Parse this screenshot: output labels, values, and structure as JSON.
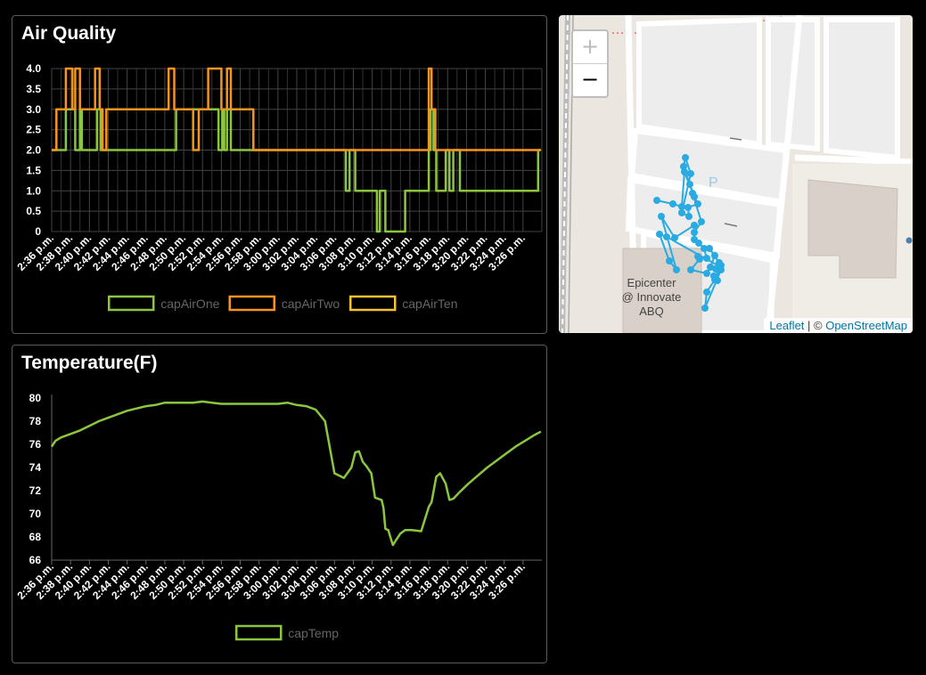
{
  "air_card": {
    "title": "Air Quality"
  },
  "temp_card": {
    "title": "Temperature(F)"
  },
  "map": {
    "zoom_in": "+",
    "zoom_out": "−",
    "place_label": [
      "Epicenter",
      "@ Innovate",
      "ABQ"
    ],
    "attribution_leaflet": "Leaflet",
    "attribution_sep": " | © ",
    "attribution_osm": "OpenStreetMap"
  },
  "colors": {
    "capAirOne": "#8cc63f",
    "capAirTwo": "#f7941d",
    "capAirTen": "#f4c430",
    "capTemp": "#8cc63f",
    "track": "#29abe2"
  },
  "chart_data": [
    {
      "type": "line",
      "title": "Air Quality",
      "x_ticks": [
        "2:36 p.m.",
        "2:38 p.m.",
        "2:40 p.m.",
        "2:42 p.m.",
        "2:44 p.m.",
        "2:46 p.m.",
        "2:48 p.m.",
        "2:50 p.m.",
        "2:52 p.m.",
        "2:54 p.m.",
        "2:56 p.m.",
        "2:58 p.m.",
        "3:00 p.m.",
        "3:02 p.m.",
        "3:04 p.m.",
        "3:06 p.m.",
        "3:08 p.m.",
        "3:10 p.m.",
        "3:12 p.m.",
        "3:14 p.m.",
        "3:16 p.m.",
        "3:18 p.m.",
        "3:20 p.m.",
        "3:22 p.m.",
        "3:24 p.m.",
        "3:26 p.m."
      ],
      "y_ticks": [
        "4.0",
        "3.5",
        "3.0",
        "2.5",
        "2.0",
        "1.5",
        "1.0",
        "0.5",
        "0"
      ],
      "ylim": [
        0,
        4
      ],
      "xlim_minutes": [
        0,
        52
      ],
      "grid": true,
      "legend_position": "bottom",
      "series": [
        {
          "name": "capAirOne",
          "step": true,
          "x": [
            0,
            1.5,
            1.5,
            2.5,
            2.5,
            3.0,
            3.0,
            3.2,
            3.2,
            4.8,
            4.8,
            5.2,
            5.2,
            5.4,
            5.4,
            13.2,
            13.2,
            17.7,
            17.7,
            18.1,
            18.1,
            18.3,
            18.3,
            18.6,
            18.6,
            19.0,
            19.0,
            31.2,
            31.2,
            31.6,
            31.6,
            32.2,
            32.2,
            32.8,
            32.8,
            34.5,
            34.5,
            34.8,
            34.8,
            35.4,
            35.4,
            35.8,
            35.8,
            37.5,
            37.5,
            40.0,
            40.0,
            40.2,
            40.2,
            40.5,
            40.5,
            40.8,
            40.8,
            41.8,
            41.8,
            42.2,
            42.2,
            42.6,
            42.6,
            43.3,
            43.3,
            51.6,
            51.6,
            51.9
          ],
          "values": [
            2,
            2,
            3,
            3,
            2,
            2,
            3,
            3,
            2,
            2,
            3,
            3,
            2,
            2,
            2,
            2,
            3,
            3,
            2,
            2,
            3,
            3,
            2,
            2,
            3,
            3,
            2,
            2,
            1,
            1,
            2,
            2,
            1,
            1,
            1,
            1,
            0,
            0,
            1,
            1,
            0,
            0,
            0,
            0,
            1,
            1,
            2,
            2,
            3,
            3,
            2,
            2,
            1,
            1,
            2,
            2,
            1,
            1,
            2,
            2,
            1,
            1,
            2,
            2
          ]
        },
        {
          "name": "capAirTwo",
          "step": true,
          "x": [
            0,
            0.5,
            0.5,
            1.5,
            1.5,
            2.2,
            2.2,
            2.5,
            2.5,
            3.0,
            3.0,
            4.6,
            4.6,
            5.1,
            5.1,
            5.4,
            5.4,
            5.8,
            5.8,
            12.4,
            12.4,
            13.0,
            13.0,
            15.0,
            15.0,
            15.6,
            15.6,
            16.6,
            16.6,
            18.0,
            18.0,
            18.6,
            18.6,
            19.0,
            19.0,
            21.4,
            21.4,
            40.0,
            40.0,
            40.3,
            40.3,
            40.7,
            40.7,
            51.9
          ],
          "values": [
            2,
            2,
            3,
            3,
            4,
            4,
            3,
            3,
            4,
            4,
            3,
            3,
            4,
            4,
            3,
            3,
            2,
            2,
            3,
            3,
            4,
            4,
            3,
            3,
            2,
            2,
            3,
            3,
            4,
            4,
            3,
            3,
            4,
            4,
            3,
            3,
            2,
            2,
            4,
            4,
            3,
            3,
            2,
            2
          ]
        },
        {
          "name": "capAirTen",
          "step": true,
          "x": [],
          "values": []
        }
      ]
    },
    {
      "type": "line",
      "title": "Temperature(F)",
      "x_ticks": [
        "2:36 p.m.",
        "2:38 p.m.",
        "2:40 p.m.",
        "2:42 p.m.",
        "2:44 p.m.",
        "2:46 p.m.",
        "2:48 p.m.",
        "2:50 p.m.",
        "2:52 p.m.",
        "2:54 p.m.",
        "2:56 p.m.",
        "2:58 p.m.",
        "3:00 p.m.",
        "3:02 p.m.",
        "3:04 p.m.",
        "3:06 p.m.",
        "3:08 p.m.",
        "3:10 p.m.",
        "3:12 p.m.",
        "3:14 p.m.",
        "3:16 p.m.",
        "3:18 p.m.",
        "3:20 p.m.",
        "3:22 p.m.",
        "3:24 p.m.",
        "3:26 p.m."
      ],
      "y_ticks": [
        "80",
        "78",
        "76",
        "74",
        "72",
        "70",
        "68",
        "66"
      ],
      "ylim": [
        66,
        80
      ],
      "xlim_minutes": [
        0,
        52
      ],
      "grid": false,
      "legend_position": "bottom",
      "series": [
        {
          "name": "capTemp",
          "x": [
            0,
            0.4,
            1,
            2,
            3,
            4,
            5,
            6,
            7,
            8,
            9,
            10,
            11,
            12,
            13,
            14,
            15,
            16,
            17,
            18,
            19,
            20,
            21,
            22,
            23,
            24,
            25,
            26,
            27,
            28,
            29,
            30,
            31,
            31.8,
            32.2,
            32.6,
            33.0,
            33.4,
            33.9,
            34.3,
            35.0,
            35.2,
            35.4,
            35.7,
            36.0,
            36.2,
            36.5,
            37.0,
            37.5,
            38.2,
            39.2,
            40.0,
            40.3,
            40.8,
            41.2,
            41.8,
            42.2,
            42.6,
            43.3,
            44.2,
            45.2,
            46.2,
            47.2,
            48.2,
            49.2,
            50.2,
            51.2,
            51.9
          ],
          "values": [
            75.8,
            76.3,
            76.6,
            76.9,
            77.2,
            77.6,
            78.0,
            78.3,
            78.6,
            78.9,
            79.1,
            79.3,
            79.4,
            79.6,
            79.6,
            79.6,
            79.6,
            79.7,
            79.6,
            79.5,
            79.5,
            79.5,
            79.5,
            79.5,
            79.5,
            79.5,
            79.6,
            79.4,
            79.3,
            79.0,
            78.0,
            73.5,
            73.1,
            74.0,
            75.3,
            75.4,
            74.5,
            74.1,
            73.5,
            71.4,
            71.2,
            70.5,
            68.7,
            68.6,
            67.8,
            67.3,
            67.7,
            68.3,
            68.6,
            68.6,
            68.5,
            70.6,
            71.0,
            73.2,
            73.5,
            72.6,
            71.2,
            71.3,
            71.9,
            72.6,
            73.3,
            74.0,
            74.6,
            75.2,
            75.8,
            76.3,
            76.8,
            77.1
          ]
        }
      ]
    }
  ]
}
